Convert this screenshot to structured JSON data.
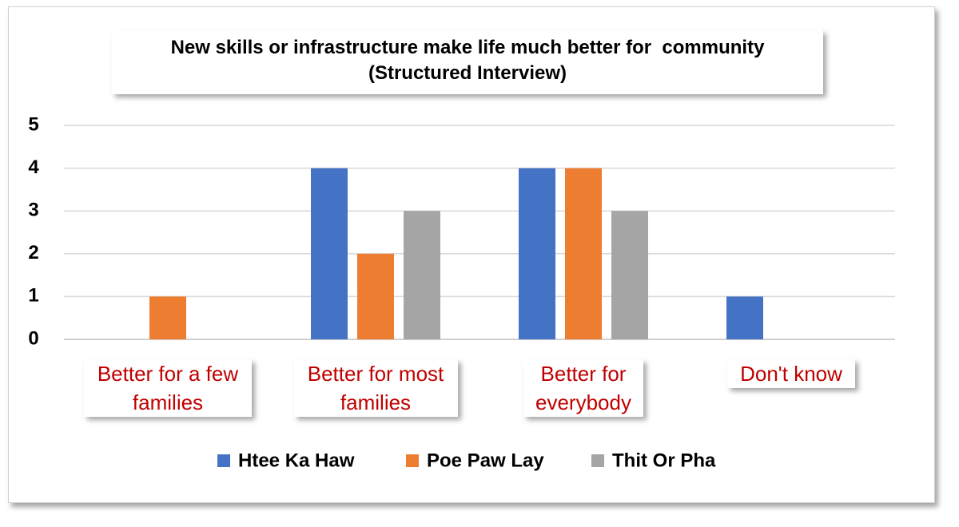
{
  "chart_data": {
    "type": "bar",
    "title": "New skills or infrastructure make life much better for  community",
    "subtitle": "(Structured Interview)",
    "categories": [
      "Better for a few families",
      "Better for most families",
      "Better for everybody",
      "Don't know"
    ],
    "series": [
      {
        "name": "Htee Ka Haw",
        "color": "#4472c4",
        "values": [
          0,
          4,
          4,
          1
        ]
      },
      {
        "name": "Poe Paw Lay",
        "color": "#ed7d31",
        "values": [
          1,
          2,
          4,
          0
        ]
      },
      {
        "name": "Thit Or Pha",
        "color": "#a5a5a5",
        "values": [
          0,
          3,
          3,
          0
        ]
      }
    ],
    "ylim": [
      0,
      5
    ],
    "yticks": [
      0,
      1,
      2,
      3,
      4,
      5
    ],
    "grid": true,
    "legend": "bottom"
  }
}
